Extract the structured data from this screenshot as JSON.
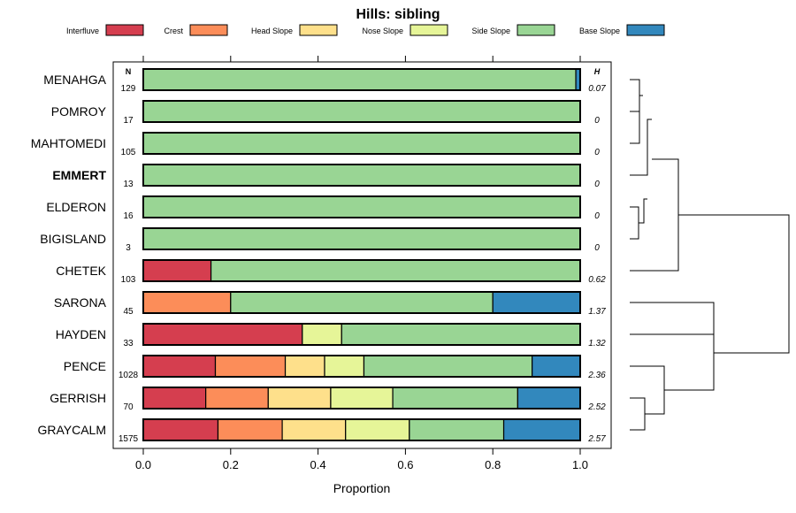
{
  "chart_data": {
    "type": "bar",
    "orientation": "horizontal",
    "stacked": true,
    "title": "Hills: sibling",
    "xlabel": "Proportion",
    "ylabel": "",
    "xlim": [
      0,
      1
    ],
    "x_ticks": [
      "0.0",
      "0.2",
      "0.4",
      "0.6",
      "0.8",
      "1.0"
    ],
    "n_header": "N",
    "h_header": "H",
    "legend_position": "top",
    "legend": [
      {
        "name": "Interfluve",
        "color": "#D53E4F"
      },
      {
        "name": "Crest",
        "color": "#FC8D59"
      },
      {
        "name": "Head Slope",
        "color": "#FEE08B"
      },
      {
        "name": "Nose Slope",
        "color": "#E6F598"
      },
      {
        "name": "Side Slope",
        "color": "#99D594"
      },
      {
        "name": "Base Slope",
        "color": "#3288BD"
      }
    ],
    "categories": [
      {
        "name": "MENAHGA",
        "n": "129",
        "h": "0.07",
        "bold": false,
        "values": [
          0,
          0,
          0,
          0,
          0.99,
          0.01
        ]
      },
      {
        "name": "POMROY",
        "n": "17",
        "h": "0",
        "bold": false,
        "values": [
          0,
          0,
          0,
          0,
          1.0,
          0
        ]
      },
      {
        "name": "MAHTOMEDI",
        "n": "105",
        "h": "0",
        "bold": false,
        "values": [
          0,
          0,
          0,
          0,
          1.0,
          0
        ]
      },
      {
        "name": "EMMERT",
        "n": "13",
        "h": "0",
        "bold": true,
        "values": [
          0,
          0,
          0,
          0,
          1.0,
          0
        ]
      },
      {
        "name": "ELDERON",
        "n": "16",
        "h": "0",
        "bold": false,
        "values": [
          0,
          0,
          0,
          0,
          1.0,
          0
        ]
      },
      {
        "name": "BIGISLAND",
        "n": "3",
        "h": "0",
        "bold": false,
        "values": [
          0,
          0,
          0,
          0,
          1.0,
          0
        ]
      },
      {
        "name": "CHETEK",
        "n": "103",
        "h": "0.62",
        "bold": false,
        "values": [
          0.155,
          0,
          0,
          0,
          0.845,
          0
        ]
      },
      {
        "name": "SARONA",
        "n": "45",
        "h": "1.37",
        "bold": false,
        "values": [
          0,
          0.2,
          0,
          0,
          0.6,
          0.2
        ]
      },
      {
        "name": "HAYDEN",
        "n": "33",
        "h": "1.32",
        "bold": false,
        "values": [
          0.364,
          0,
          0,
          0.09,
          0.546,
          0
        ]
      },
      {
        "name": "PENCE",
        "n": "1028",
        "h": "2.36",
        "bold": false,
        "values": [
          0.165,
          0.16,
          0.09,
          0.09,
          0.385,
          0.11
        ]
      },
      {
        "name": "GERRISH",
        "n": "70",
        "h": "2.52",
        "bold": false,
        "values": [
          0.143,
          0.143,
          0.143,
          0.142,
          0.286,
          0.143
        ]
      },
      {
        "name": "GRAYCALM",
        "n": "1575",
        "h": "2.57",
        "bold": false,
        "values": [
          0.171,
          0.147,
          0.145,
          0.146,
          0.216,
          0.175
        ]
      }
    ]
  }
}
